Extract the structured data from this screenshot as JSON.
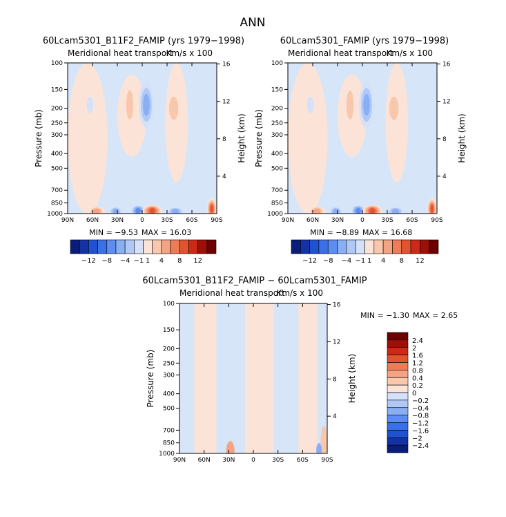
{
  "page": {
    "title": "ANN"
  },
  "palette": {
    "sequential": [
      "#0a1d7a",
      "#1232a6",
      "#1f52d1",
      "#3b6fe7",
      "#5d8df0",
      "#88aef3",
      "#b0c8f5",
      "#d4e1f8",
      "#fbe4d7",
      "#f8c7ac",
      "#f4a482",
      "#ee7c57",
      "#e2532f",
      "#cc2a17",
      "#9e1007",
      "#6a0000"
    ],
    "cool_fill": "#d7e5f9",
    "warm_fill": "#fbe4d7"
  },
  "chart_data": [
    {
      "type": "heatmap",
      "title": "60Lcam5301_B11F2_FAMIP (yrs 1979−1998)",
      "subtitle": "Meridional heat transport",
      "units": "Km/s x 100",
      "xlabel": "",
      "ylabel": "Pressure (mb)",
      "y2label": "Height (km)",
      "x_ticks": [
        "90N",
        "60N",
        "30N",
        "0",
        "30S",
        "60S",
        "90S"
      ],
      "y_ticks": [
        "100",
        "150",
        "200",
        "250",
        "300",
        "400",
        "500",
        "700",
        "850",
        "1000"
      ],
      "y_ticks_values": [
        100,
        150,
        200,
        250,
        300,
        400,
        500,
        700,
        850,
        1000
      ],
      "y2_ticks": [
        "16",
        "12",
        "8",
        "4"
      ],
      "y2_ticks_values": [
        16,
        12,
        8,
        4
      ],
      "min_label": "MIN =   −9.53",
      "max_label": "MAX =   16.03",
      "colorbar_labels": [
        "−12",
        "−8",
        "−4",
        "−1",
        "1",
        "4",
        "8",
        "12"
      ],
      "blobs": [
        {
          "x": -55,
          "p": 970,
          "rx": 10,
          "rp": 80,
          "sign": 1,
          "level": 3
        },
        {
          "x": -32,
          "p": 970,
          "rx": 8,
          "rp": 70,
          "sign": -1,
          "level": 3
        },
        {
          "x": -5,
          "p": 960,
          "rx": 9,
          "rp": 90,
          "sign": -1,
          "level": 4
        },
        {
          "x": 12,
          "p": 960,
          "rx": 12,
          "rp": 95,
          "sign": 1,
          "level": 5
        },
        {
          "x": 40,
          "p": 970,
          "rx": 10,
          "rp": 60,
          "sign": -1,
          "level": 3
        },
        {
          "x": -15,
          "p": 190,
          "rx": 7,
          "rp": 60,
          "sign": 1,
          "level": 2
        },
        {
          "x": 5,
          "p": 190,
          "rx": 9,
          "rp": 60,
          "sign": -1,
          "level": 3
        },
        {
          "x": 38,
          "p": 200,
          "rx": 9,
          "rp": 50,
          "sign": 1,
          "level": 2
        },
        {
          "x": -63,
          "p": 190,
          "rx": 4,
          "rp": 20,
          "sign": -1,
          "level": 1
        },
        {
          "x": 84,
          "p": 930,
          "rx": 6,
          "rp": 170,
          "sign": 1,
          "level": 5
        }
      ]
    },
    {
      "type": "heatmap",
      "title": "60Lcam5301_FAMIP (yrs 1979−1998)",
      "subtitle": "Meridional heat transport",
      "units": "Km/s x 100",
      "xlabel": "",
      "ylabel": "Pressure (mb)",
      "y2label": "Height (km)",
      "x_ticks": [
        "90N",
        "60N",
        "30N",
        "0",
        "30S",
        "60S",
        "90S"
      ],
      "y_ticks": [
        "100",
        "150",
        "200",
        "250",
        "300",
        "400",
        "500",
        "700",
        "850",
        "1000"
      ],
      "y_ticks_values": [
        100,
        150,
        200,
        250,
        300,
        400,
        500,
        700,
        850,
        1000
      ],
      "y2_ticks": [
        "16",
        "12",
        "8",
        "4"
      ],
      "y2_ticks_values": [
        16,
        12,
        8,
        4
      ],
      "min_label": "MIN =   −8.89",
      "max_label": "MAX =   16.68",
      "colorbar_labels": [
        "−12",
        "−8",
        "−4",
        "−1",
        "1",
        "4",
        "8",
        "12"
      ],
      "blobs": [
        {
          "x": -55,
          "p": 970,
          "rx": 10,
          "rp": 80,
          "sign": 1,
          "level": 3
        },
        {
          "x": -32,
          "p": 970,
          "rx": 8,
          "rp": 70,
          "sign": -1,
          "level": 3
        },
        {
          "x": -5,
          "p": 960,
          "rx": 9,
          "rp": 90,
          "sign": -1,
          "level": 4
        },
        {
          "x": 12,
          "p": 960,
          "rx": 12,
          "rp": 95,
          "sign": 1,
          "level": 5
        },
        {
          "x": 40,
          "p": 970,
          "rx": 10,
          "rp": 60,
          "sign": -1,
          "level": 3
        },
        {
          "x": -15,
          "p": 190,
          "rx": 7,
          "rp": 60,
          "sign": 1,
          "level": 2
        },
        {
          "x": 5,
          "p": 190,
          "rx": 9,
          "rp": 60,
          "sign": -1,
          "level": 3
        },
        {
          "x": 38,
          "p": 200,
          "rx": 9,
          "rp": 50,
          "sign": 1,
          "level": 2
        },
        {
          "x": -63,
          "p": 190,
          "rx": 4,
          "rp": 20,
          "sign": -1,
          "level": 1
        },
        {
          "x": 84,
          "p": 930,
          "rx": 6,
          "rp": 170,
          "sign": 1,
          "level": 5
        }
      ]
    },
    {
      "type": "heatmap",
      "title": "60Lcam5301_B11F2_FAMIP − 60Lcam5301_FAMIP",
      "subtitle": "Meridional heat transport",
      "units": "Km/s x 100",
      "xlabel": "",
      "ylabel": "Pressure (mb)",
      "y2label": "Height (km)",
      "x_ticks": [
        "90N",
        "60N",
        "30N",
        "0",
        "30S",
        "60S",
        "90S"
      ],
      "y_ticks": [
        "100",
        "150",
        "200",
        "250",
        "300",
        "400",
        "500",
        "700",
        "850",
        "1000"
      ],
      "y_ticks_values": [
        100,
        150,
        200,
        250,
        300,
        400,
        500,
        700,
        850,
        1000
      ],
      "y2_ticks": [
        "16",
        "12",
        "8",
        "4"
      ],
      "y2_ticks_values": [
        16,
        12,
        8,
        4
      ],
      "min_label": "MIN =   −1.30",
      "max_label": "MAX =    2.65",
      "colorbar_labels": [
        "2.4",
        "2",
        "1.6",
        "1.2",
        "0.8",
        "0.4",
        "0.2",
        "0",
        "−0.2",
        "−0.4",
        "−0.8",
        "−1.2",
        "−1.6",
        "−2",
        "−2.4"
      ],
      "diff_bands": [
        {
          "x1": -72,
          "x2": -45,
          "sign": 1
        },
        {
          "x1": -10,
          "x2": 25,
          "sign": 1
        },
        {
          "x1": 55,
          "x2": 78,
          "sign": 1
        }
      ]
    }
  ]
}
